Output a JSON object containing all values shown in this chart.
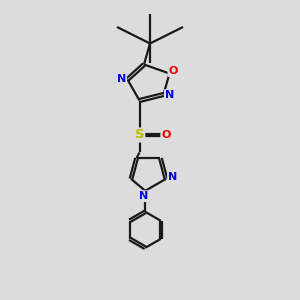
{
  "background_color": "#dcdcdc",
  "bond_color": "#1a1a1a",
  "N_color": "#0000ee",
  "O_color": "#ee0000",
  "S_color": "#bbbb00",
  "figsize": [
    3.0,
    3.0
  ],
  "dpi": 100,
  "xlim": [
    0,
    10
  ],
  "ylim": [
    0,
    10
  ],
  "lw": 1.6
}
